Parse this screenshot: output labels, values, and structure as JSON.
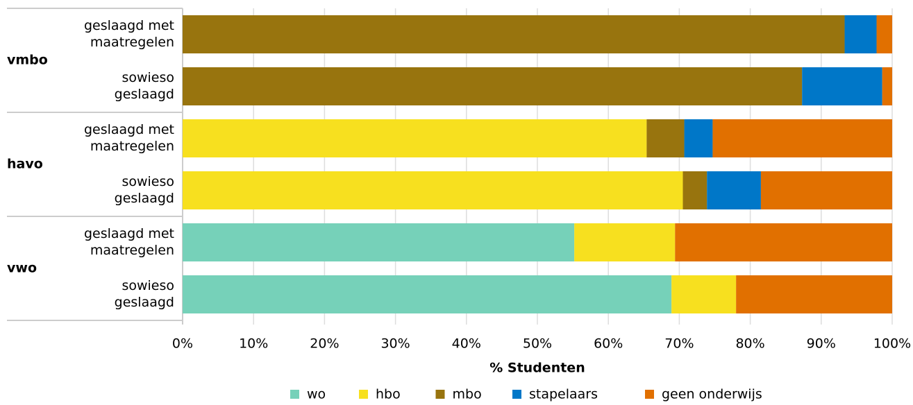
{
  "chart_data": {
    "type": "stacked-barh",
    "xlabel": "% Studenten",
    "groups": [
      "vmbo",
      "havo",
      "vwo"
    ],
    "categories": [
      [
        "geslaagd met",
        "maatregelen"
      ],
      [
        "sowieso",
        "geslaagd"
      ],
      [
        "geslaagd met",
        "maatregelen"
      ],
      [
        "sowieso",
        "geslaagd"
      ],
      [
        "geslaagd met",
        "maatregelen"
      ],
      [
        "sowieso",
        "geslaagd"
      ]
    ],
    "series": [
      {
        "name": "wo",
        "color": "#76d1b9",
        "values": [
          0,
          0,
          0,
          0,
          55.2,
          68.9
        ]
      },
      {
        "name": "hbo",
        "color": "#f7e01f",
        "values": [
          0,
          0,
          65.4,
          70.5,
          14.2,
          9.1
        ]
      },
      {
        "name": "mbo",
        "color": "#98740e",
        "values": [
          93.3,
          87.3,
          5.3,
          3.4,
          0,
          0
        ]
      },
      {
        "name": "stapelaars",
        "color": "#0077c8",
        "values": [
          4.5,
          11.3,
          4.0,
          7.6,
          0,
          0
        ]
      },
      {
        "name": "geen onderwijs",
        "color": "#e17000",
        "values": [
          2.2,
          1.4,
          25.3,
          18.5,
          30.6,
          22.0
        ]
      }
    ],
    "xlim": [
      0,
      100
    ],
    "xticks": [
      {
        "value": 0,
        "label": "0%"
      },
      {
        "value": 10,
        "label": "10%"
      },
      {
        "value": 20,
        "label": "20%"
      },
      {
        "value": 30,
        "label": "30%"
      },
      {
        "value": 40,
        "label": "40%"
      },
      {
        "value": 50,
        "label": "50%"
      },
      {
        "value": 60,
        "label": "60%"
      },
      {
        "value": 70,
        "label": "70%"
      },
      {
        "value": 80,
        "label": "80%"
      },
      {
        "value": 90,
        "label": "90%"
      },
      {
        "value": 100,
        "label": "100%"
      }
    ],
    "grid": true,
    "legend": "bottom"
  }
}
